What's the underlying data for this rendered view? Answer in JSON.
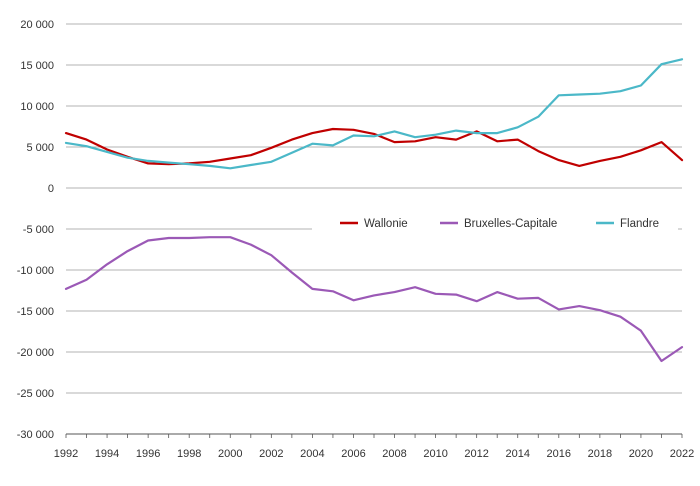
{
  "chart_data": {
    "type": "line",
    "title": "",
    "xlabel": "",
    "ylabel": "",
    "ylim": [
      -30000,
      20000
    ],
    "ytick_values": [
      -30000,
      -25000,
      -20000,
      -15000,
      -10000,
      -5000,
      0,
      5000,
      10000,
      15000,
      20000
    ],
    "ytick_labels": [
      "-30 000",
      "-25 000",
      "-20 000",
      "-15 000",
      "-10 000",
      "-5 000",
      "0",
      "5 000",
      "10 000",
      "15 000",
      "20 000"
    ],
    "x": [
      1992,
      1993,
      1994,
      1995,
      1996,
      1997,
      1998,
      1999,
      2000,
      2001,
      2002,
      2003,
      2004,
      2005,
      2006,
      2007,
      2008,
      2009,
      2010,
      2011,
      2012,
      2013,
      2014,
      2015,
      2016,
      2017,
      2018,
      2019,
      2020,
      2021,
      2022
    ],
    "xtick_labels": [
      "1992",
      "1994",
      "1996",
      "1998",
      "2000",
      "2002",
      "2004",
      "2006",
      "2008",
      "2010",
      "2012",
      "2014",
      "2016",
      "2018",
      "2020",
      "2022"
    ],
    "grid": "horizontal",
    "legend_position": "inside, middle-right",
    "series": [
      {
        "name": "Wallonie",
        "color": "#c00000",
        "values": [
          6700,
          5900,
          4700,
          3800,
          3000,
          2900,
          3000,
          3200,
          3600,
          4000,
          4900,
          5900,
          6700,
          7200,
          7100,
          6600,
          5600,
          5700,
          6200,
          5900,
          6900,
          5700,
          5900,
          4500,
          3400,
          2700,
          3300,
          3800,
          4600,
          5600,
          3400
        ]
      },
      {
        "name": "Bruxelles-Capitale",
        "color": "#9b59b6",
        "values": [
          -12300,
          -11200,
          -9300,
          -7700,
          -6400,
          -6100,
          -6100,
          -6000,
          -6000,
          -6900,
          -8200,
          -10300,
          -12300,
          -12600,
          -13700,
          -13100,
          -12700,
          -12100,
          -12900,
          -13000,
          -13800,
          -12700,
          -13500,
          -13400,
          -14800,
          -14400,
          -14900,
          -15700,
          -17400,
          -21100,
          -19400
        ]
      },
      {
        "name": "Flandre",
        "color": "#4bb8c8",
        "values": [
          5500,
          5100,
          4400,
          3700,
          3300,
          3100,
          2900,
          2700,
          2400,
          2800,
          3200,
          4300,
          5400,
          5200,
          6400,
          6300,
          6900,
          6200,
          6500,
          7000,
          6700,
          6700,
          7400,
          8700,
          11300,
          11400,
          11500,
          11800,
          12500,
          15100,
          15700
        ]
      }
    ]
  }
}
